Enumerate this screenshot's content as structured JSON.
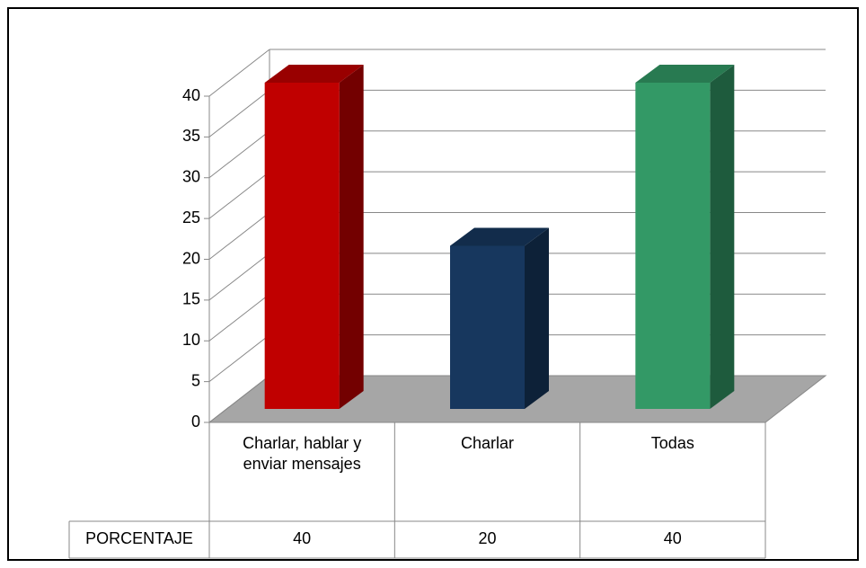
{
  "chart_data": {
    "type": "bar",
    "categories": [
      "Charlar, hablar y enviar mensajes",
      "Charlar",
      "Todas"
    ],
    "series": [
      {
        "name": "PORCENTAJE",
        "values": [
          40,
          20,
          40
        ],
        "colors": [
          "#c00000",
          "#17375e",
          "#339966"
        ]
      }
    ],
    "ylim": [
      0,
      40
    ],
    "yticks": [
      0,
      5,
      10,
      15,
      20,
      25,
      30,
      35,
      40
    ],
    "grid": true
  }
}
